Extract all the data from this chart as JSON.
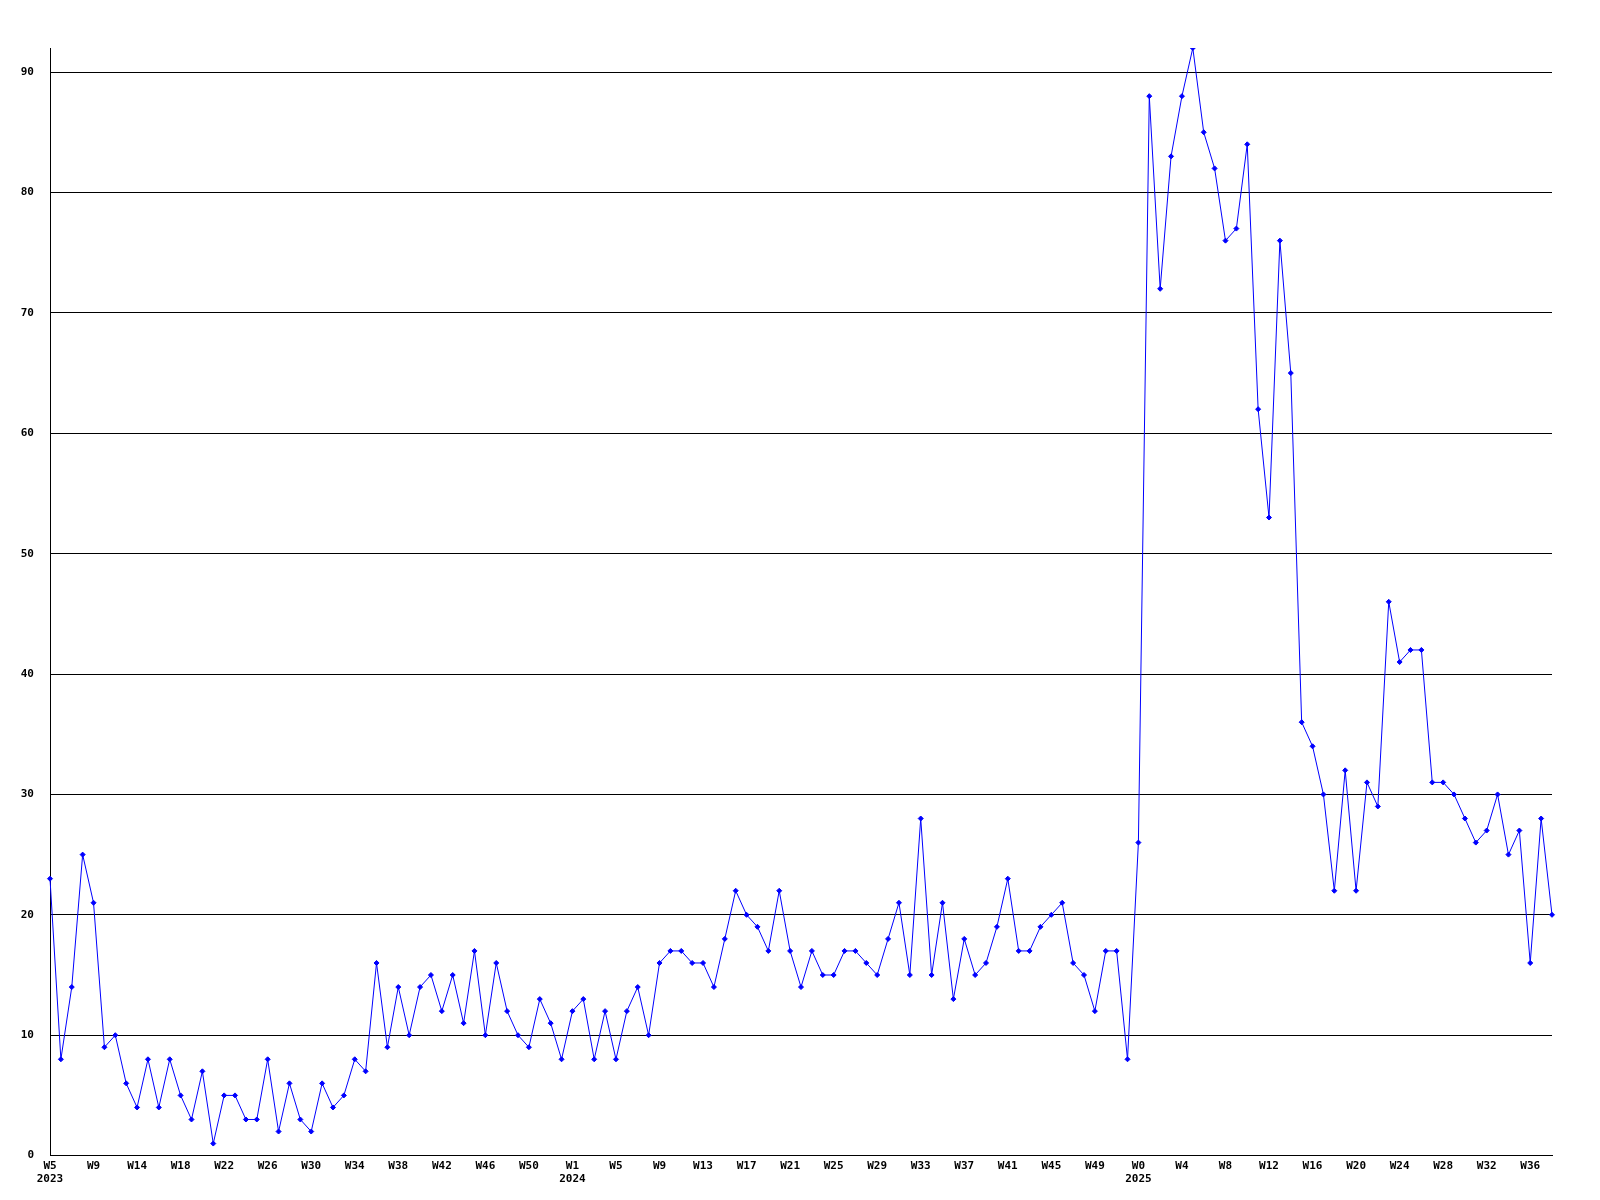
{
  "chart_data": {
    "type": "line",
    "categories": [
      "W5\n2023",
      null,
      null,
      null,
      "W9",
      null,
      null,
      null,
      "W14",
      null,
      null,
      null,
      "W18",
      null,
      null,
      null,
      "W22",
      null,
      null,
      null,
      "W26",
      null,
      null,
      null,
      "W30",
      null,
      null,
      null,
      "W34",
      null,
      null,
      null,
      "W38",
      null,
      null,
      null,
      "W42",
      null,
      null,
      null,
      "W46",
      null,
      null,
      null,
      "W50",
      null,
      null,
      null,
      "W1\n2024",
      null,
      null,
      null,
      "W5",
      null,
      null,
      null,
      "W9",
      null,
      null,
      null,
      "W13",
      null,
      null,
      null,
      "W17",
      null,
      null,
      null,
      "W21",
      null,
      null,
      null,
      "W25",
      null,
      null,
      null,
      "W29",
      null,
      null,
      null,
      "W33",
      null,
      null,
      null,
      "W37",
      null,
      null,
      null,
      "W41",
      null,
      null,
      null,
      "W45",
      null,
      null,
      null,
      "W49",
      null,
      null,
      null,
      "W0\n2025",
      null,
      null,
      null,
      "W4",
      null,
      null,
      null,
      "W8",
      null,
      null,
      null,
      "W12",
      null,
      null,
      null,
      "W16",
      null,
      null,
      null,
      "W20",
      null,
      null,
      null,
      "W24",
      null,
      null,
      null,
      "W28",
      null,
      null,
      null,
      "W32",
      null,
      null,
      null,
      "W36",
      null,
      null
    ],
    "series": [
      {
        "color": "#0000ff",
        "values": [
          23,
          8,
          14,
          25,
          21,
          9,
          10,
          6,
          4,
          8,
          4,
          8,
          5,
          3,
          7,
          1,
          5,
          5,
          3,
          3,
          8,
          2,
          6,
          3,
          2,
          6,
          4,
          5,
          8,
          7,
          16,
          9,
          14,
          10,
          14,
          15,
          12,
          15,
          11,
          17,
          10,
          16,
          12,
          10,
          9,
          13,
          11,
          8,
          12,
          13,
          8,
          12,
          8,
          12,
          14,
          10,
          16,
          17,
          17,
          16,
          16,
          14,
          18,
          22,
          20,
          19,
          17,
          22,
          17,
          14,
          17,
          15,
          15,
          17,
          17,
          16,
          15,
          18,
          21,
          15,
          28,
          15,
          21,
          13,
          18,
          15,
          16,
          19,
          23,
          17,
          17,
          19,
          20,
          21,
          16,
          15,
          12,
          17,
          17,
          8,
          26,
          88,
          72,
          83,
          88,
          92,
          85,
          82,
          76,
          77,
          84,
          62,
          53,
          76,
          65,
          36,
          34,
          30,
          22,
          32,
          22,
          31,
          29,
          46,
          41,
          42,
          42,
          31,
          31,
          30,
          28,
          26,
          27,
          30,
          25,
          27,
          16,
          28,
          20
        ]
      }
    ],
    "ylim": [
      0,
      92
    ],
    "yticks": [
      0,
      10,
      20,
      30,
      40,
      50,
      60,
      70,
      80,
      90
    ],
    "grid": "y",
    "legend": false,
    "marker": "diamond",
    "line_style": "solid"
  }
}
